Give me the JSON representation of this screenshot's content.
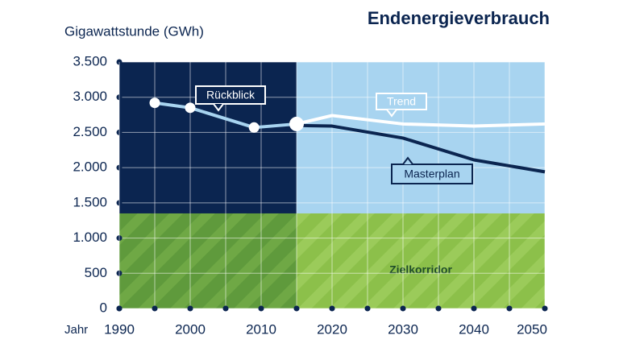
{
  "chart_data": {
    "type": "line",
    "title": "Endenergieverbrauch",
    "y_label": "Gigawattstunde (GWh)",
    "x_label": "Jahr",
    "xlim": [
      1990,
      2050
    ],
    "xticks": [
      1990,
      2000,
      2010,
      2020,
      2030,
      2040,
      2050
    ],
    "ylim": [
      0,
      3500
    ],
    "yticks": [
      0,
      500,
      {
        "value": 1000,
        "label": "1.000"
      },
      {
        "value": 1500,
        "label": "1.500"
      },
      {
        "value": 2000,
        "label": "2.000"
      },
      {
        "value": 2500,
        "label": "2.500"
      },
      {
        "value": 3000,
        "label": "3.000"
      },
      {
        "value": 3500,
        "label": "3.500"
      }
    ],
    "grid": true,
    "split_x": 2015,
    "corridor": {
      "label": "Zielkorridor",
      "ylim": [
        0,
        1350
      ]
    },
    "series": [
      {
        "name": "Rückblick",
        "color": "#a8d4f0",
        "x": [
          1995,
          2000,
          2009,
          2015
        ],
        "values": [
          2920,
          2850,
          2570,
          2620
        ]
      },
      {
        "name": "Trend",
        "color": "#ffffff",
        "x": [
          2015,
          2020,
          2030,
          2040,
          2050
        ],
        "values": [
          2620,
          2740,
          2620,
          2590,
          2620
        ]
      },
      {
        "name": "Masterplan",
        "color": "#0b2550",
        "x": [
          2015,
          2020,
          2030,
          2040,
          2050
        ],
        "values": [
          2600,
          2590,
          2420,
          2110,
          1940
        ]
      }
    ]
  }
}
